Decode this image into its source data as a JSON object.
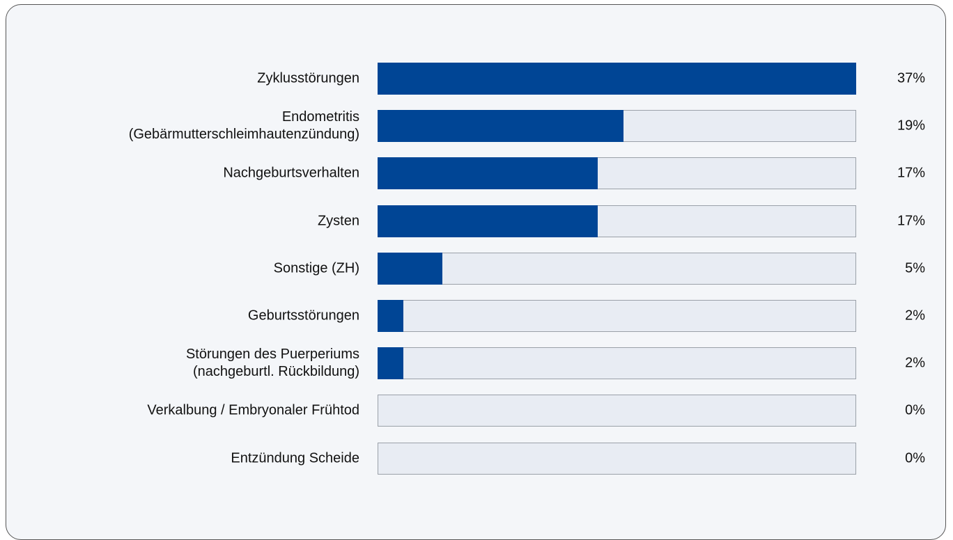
{
  "chart_data": {
    "type": "bar",
    "orientation": "horizontal",
    "color": "#004595",
    "categories": [
      "Zyklusstörungen",
      "Endometritis\n(Gebärmutterschleimhautenzündung)",
      "Nachgeburtsverhalten",
      "Zysten",
      "Sonstige (ZH)",
      "Geburtsstörungen",
      "Störungen des Puerperiums\n(nachgeburtl. Rückbildung)",
      "Verkalbung / Embryonaler Frühtod",
      "Entzündung Scheide"
    ],
    "values": [
      37,
      19,
      17,
      17,
      5,
      2,
      2,
      0,
      0
    ],
    "value_labels": [
      "37%",
      "19%",
      "17%",
      "17%",
      "5%",
      "2%",
      "2%",
      "0%",
      "0%"
    ]
  }
}
